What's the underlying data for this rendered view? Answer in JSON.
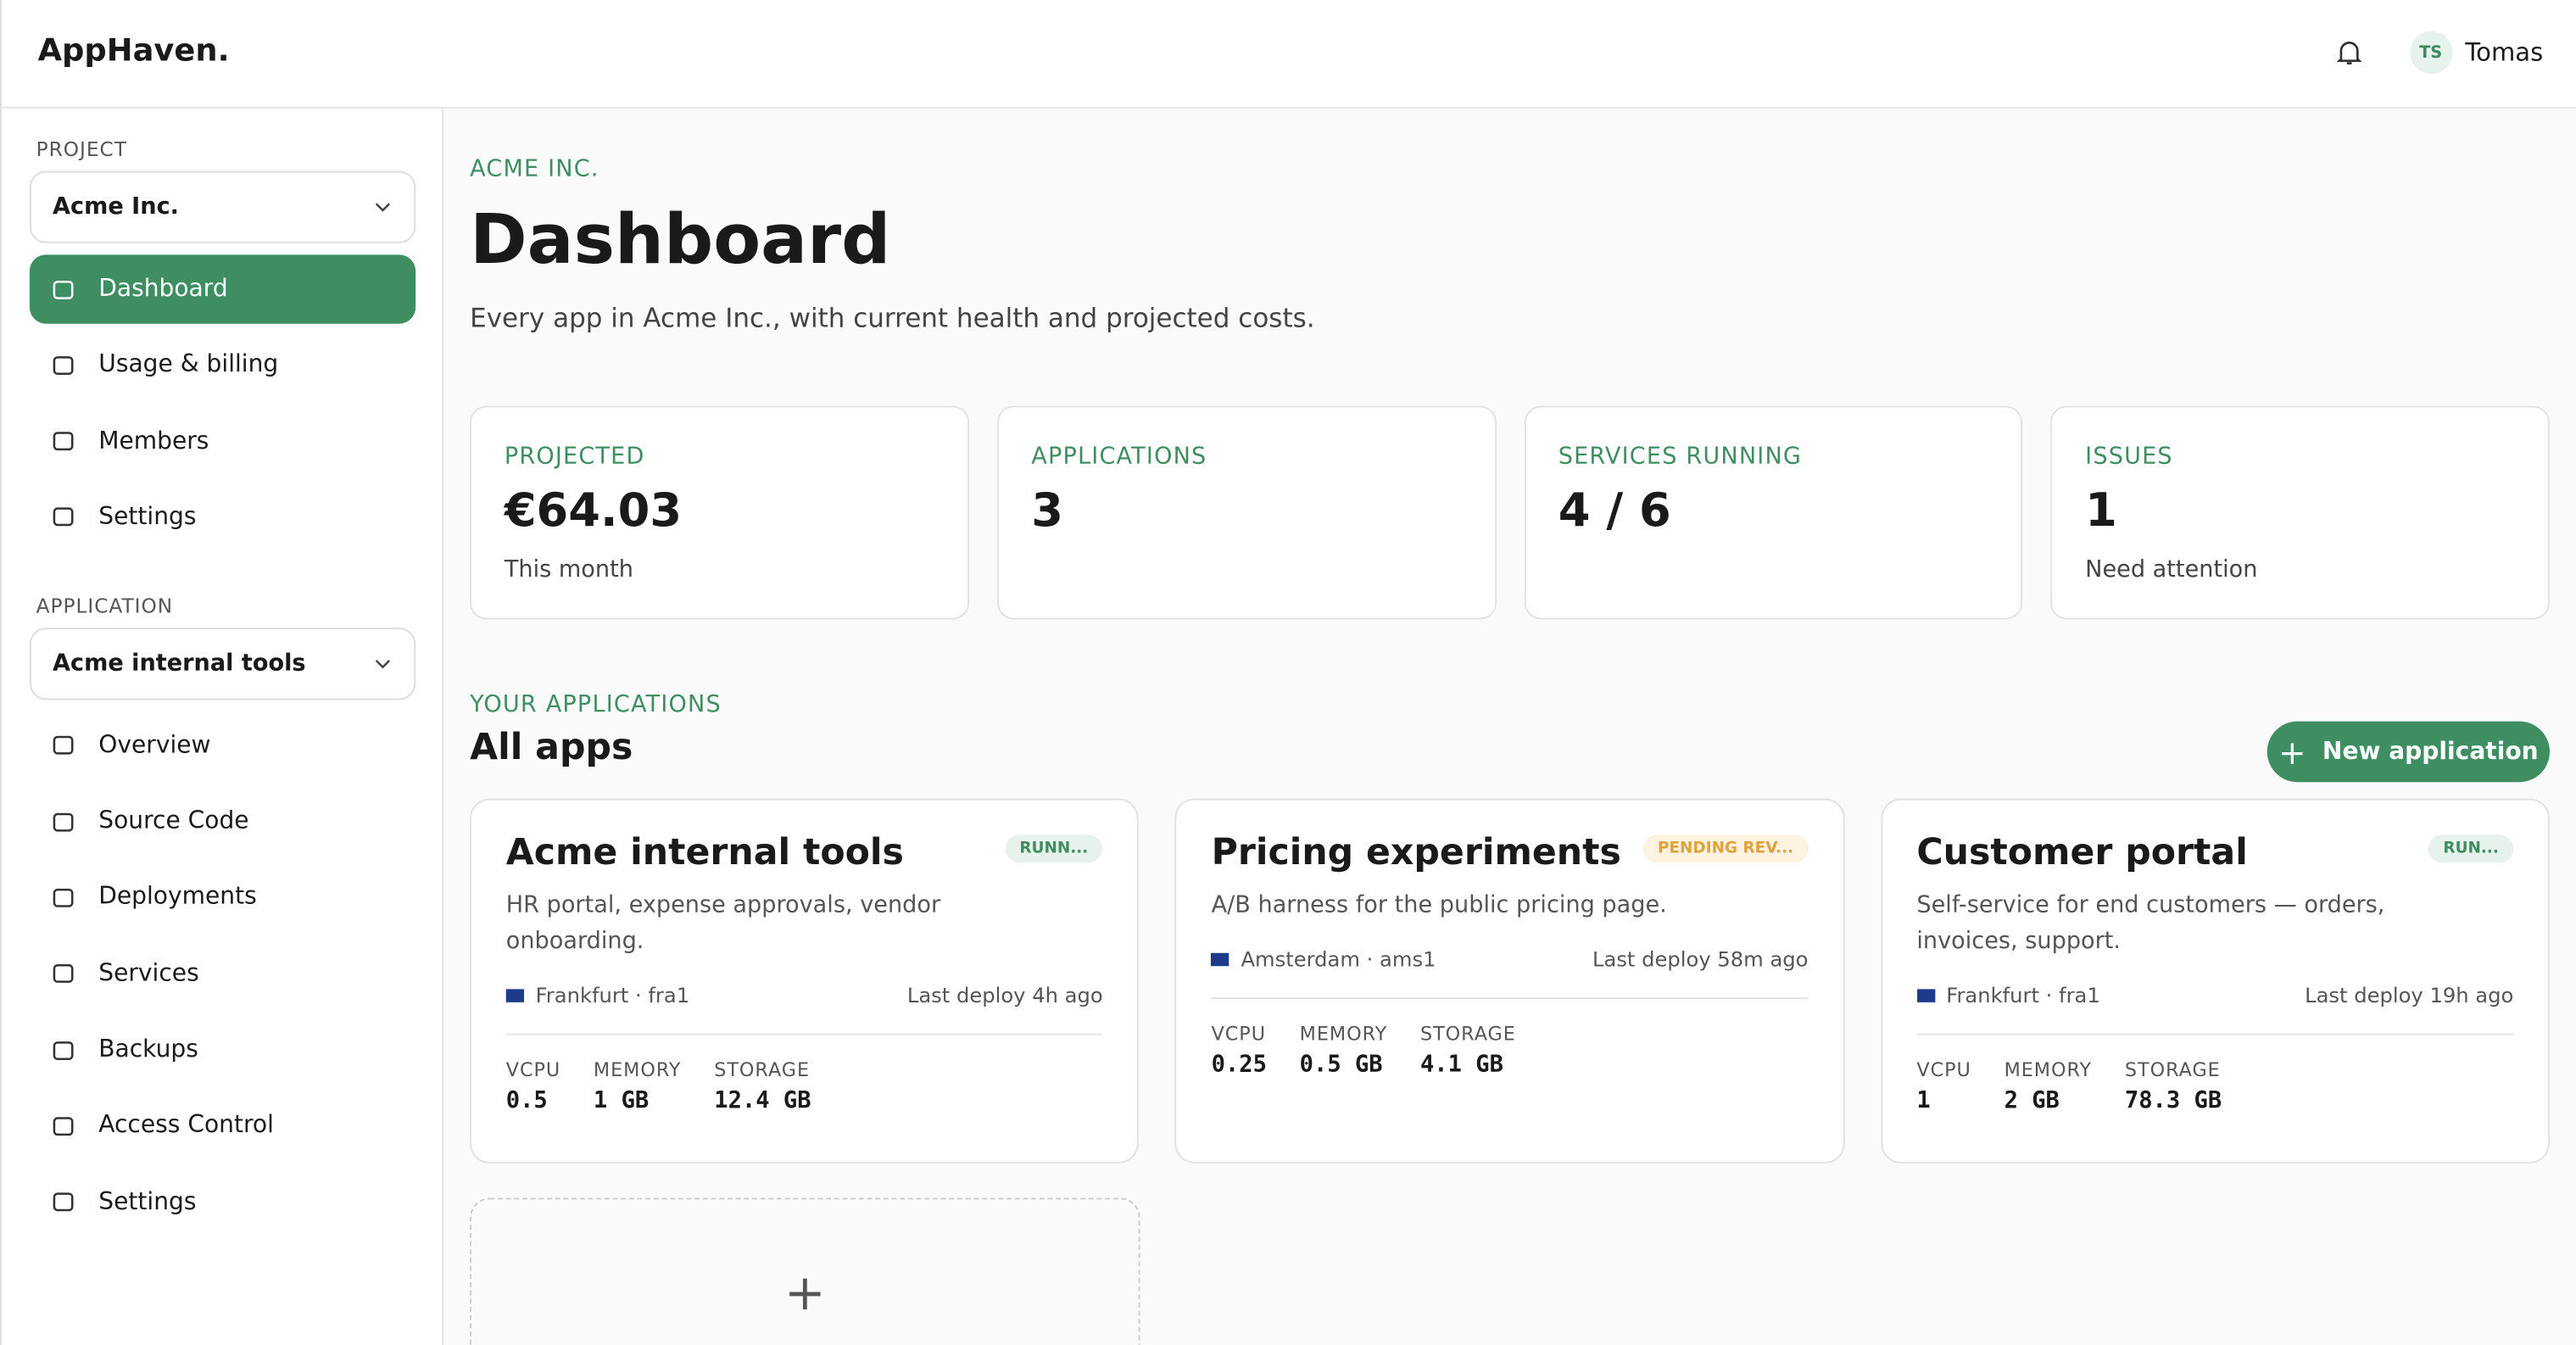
{
  "header": {
    "brand": "AppHaven.",
    "user_initials": "TS",
    "user_name": "Tomas"
  },
  "sidebar": {
    "project_label": "PROJECT",
    "project_select": "Acme Inc.",
    "project_nav": [
      "Dashboard",
      "Usage & billing",
      "Members",
      "Settings"
    ],
    "application_label": "APPLICATION",
    "application_select": "Acme internal tools",
    "application_nav": [
      "Overview",
      "Source Code",
      "Deployments",
      "Services",
      "Backups",
      "Access Control",
      "Settings"
    ]
  },
  "main": {
    "eyebrow": "ACME INC.",
    "title": "Dashboard",
    "subtitle": "Every app in Acme Inc., with current health and projected costs.",
    "stats": [
      {
        "label": "PROJECTED",
        "value": "€64.03",
        "note": "This month"
      },
      {
        "label": "APPLICATIONS",
        "value": "3"
      },
      {
        "label": "SERVICES RUNNING",
        "value": "4 / 6"
      },
      {
        "label": "ISSUES",
        "value": "1",
        "note": "Need attention"
      }
    ],
    "section_eyebrow": "YOUR APPLICATIONS",
    "section_title": "All apps",
    "new_button": "New application",
    "apps": [
      {
        "name": "Acme internal tools",
        "status": "RUNN...",
        "description": "HR portal, expense approvals, vendor onboarding.",
        "location": "Frankfurt · fra1",
        "last_deploy": "Last deploy 4h ago",
        "specs": [
          {
            "label": "VCPU",
            "value": "0.5"
          },
          {
            "label": "MEMORY",
            "value": "1 GB"
          },
          {
            "label": "STORAGE",
            "value": "12.4 GB"
          }
        ]
      },
      {
        "name": "Pricing experiments",
        "status": "PENDING REV...",
        "description": "A/B harness for the public pricing page.",
        "location": "Amsterdam · ams1",
        "last_deploy": "Last deploy 58m ago",
        "specs": [
          {
            "label": "VCPU",
            "value": "0.25"
          },
          {
            "label": "MEMORY",
            "value": "0.5 GB"
          },
          {
            "label": "STORAGE",
            "value": "4.1 GB"
          }
        ]
      },
      {
        "name": "Customer portal",
        "status": "RUN...",
        "description": "Self-service for end customers — orders, invoices, support.",
        "location": "Frankfurt · fra1",
        "last_deploy": "Last deploy 19h ago",
        "specs": [
          {
            "label": "VCPU",
            "value": "1"
          },
          {
            "label": "MEMORY",
            "value": "2 GB"
          },
          {
            "label": "STORAGE",
            "value": "78.3 GB"
          }
        ]
      }
    ]
  }
}
